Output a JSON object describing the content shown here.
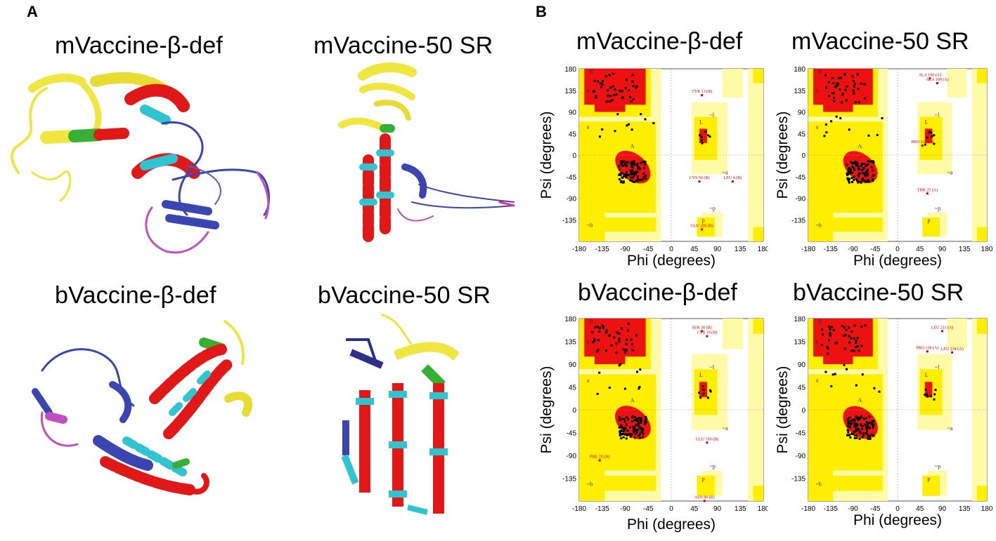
{
  "panel_a": {
    "letter": "A",
    "titles": [
      "mVaccine-β-def",
      "mVaccine-50 SR",
      "bVaccine-β-def",
      "bVaccine-50 SR"
    ]
  },
  "panel_b": {
    "letter": "B",
    "plots": [
      {
        "title": "mVaccine-β-def",
        "xlabel": "Phi (degrees)",
        "ylabel": "Psi (degrees)",
        "labels": [
          "TYR 13 (B)",
          "CYS 66 (B)",
          "LEU 4 (B)",
          "GLU 200 (B)"
        ]
      },
      {
        "title": "mVaccine-50 SR",
        "xlabel": "Phi (degrees)",
        "ylabel": "Psi (degrees)",
        "labels": [
          "ALA 100 (A)",
          "ALA 109 (A)",
          "PRO 112 (A)",
          "THR 25 (A)"
        ]
      },
      {
        "title": "bVaccine-β-def",
        "xlabel": "Phi (degrees)",
        "ylabel": "Psi (degrees)",
        "labels": [
          "SER 30 (B)",
          "CYS 19 (B)",
          "GLU 190 (B)",
          "PHE 20 (B)",
          "ASN 80 (B)"
        ]
      },
      {
        "title": "bVaccine-50 SR",
        "xlabel": "Phi (degrees)",
        "ylabel": "Psi (degrees)",
        "labels": [
          "LEU 211 (A)",
          "PRO 138 (A)",
          "LEU 234 (A)"
        ]
      }
    ],
    "xticks": [
      "-180",
      "-135",
      "-90",
      "-45",
      "0",
      "45",
      "90",
      "135",
      "180"
    ],
    "yticks": [
      "180",
      "135",
      "90",
      "45",
      "0",
      "-45",
      "-90",
      "-135"
    ],
    "region_letters": [
      "B",
      "b",
      "a",
      "A",
      "L",
      "p",
      "~b",
      "~a",
      "~l",
      "~p"
    ]
  },
  "colors": {
    "core": "#ee1111",
    "allowed": "#ffee00",
    "generous": "#fffaa8",
    "helix": "#e01818",
    "turn": "#2ec4d0",
    "strand": "#3a45b0",
    "loop": "#c050c0",
    "linker": "#f0e640",
    "green": "#35b035"
  }
}
